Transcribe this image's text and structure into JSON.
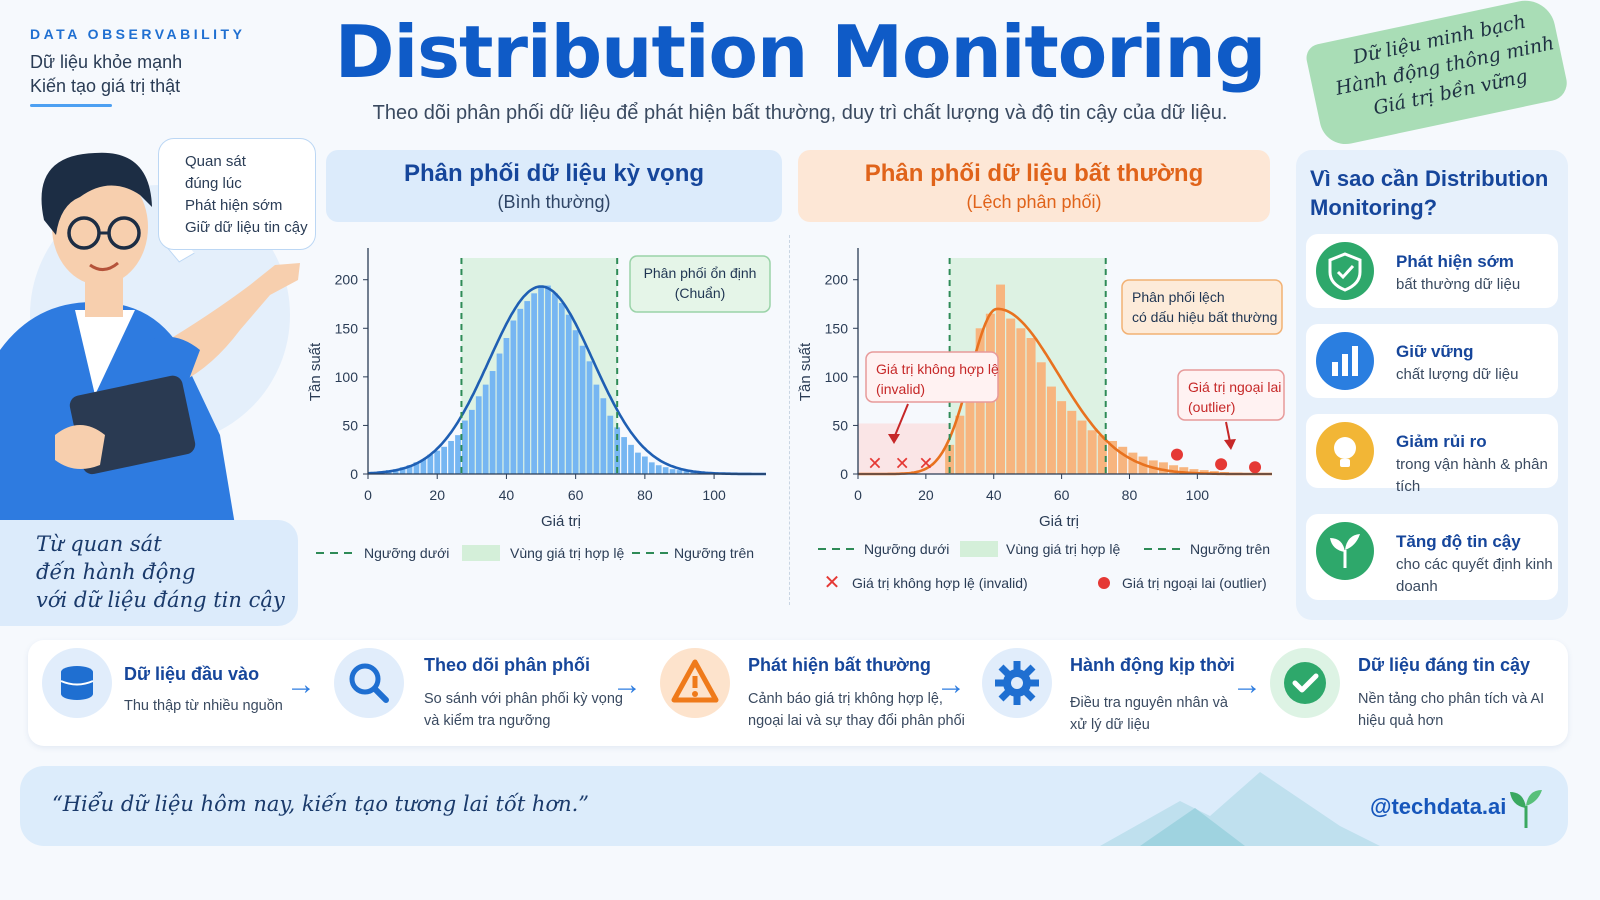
{
  "brand": {
    "tag": "DATA OBSERVABILITY",
    "line1": "Dữ liệu khỏe mạnh",
    "line2": "Kiến tạo giá trị thật"
  },
  "header": {
    "title": "Distribution Monitoring",
    "subtitle": "Theo dõi phân phối dữ liệu để phát hiện bất thường, duy trì chất lượng và độ tin cậy của dữ liệu."
  },
  "tape": {
    "lines": [
      "Dữ liệu minh bạch",
      "Hành động thông minh",
      "Giá trị bền vững"
    ]
  },
  "speech_bubble": {
    "lines": [
      "Quan sát",
      "đúng lúc",
      "Phát hiện sớm",
      "Giữ dữ liệu tin cậy"
    ]
  },
  "quote_card": {
    "lines": [
      "Từ quan sát",
      "đến hành động",
      "với dữ liệu đáng tin cậy"
    ]
  },
  "panels": {
    "left": {
      "title": "Phân phối dữ liệu kỳ vọng",
      "subtitle": "(Bình thường)"
    },
    "right": {
      "title": "Phân phối dữ liệu bất thường",
      "subtitle": "(Lệch phân phối)"
    }
  },
  "colors": {
    "normal_bar": "#76b6f2",
    "normal_curve": "#1f5fb3",
    "skew_bar": "#f7b57f",
    "skew_curve": "#e8721f",
    "threshold": "#2e8b57",
    "valid_zone": "#d4efd9",
    "invalid": "#e53935",
    "outlier": "#e53935",
    "accent": "#0f5bc7"
  },
  "chart_data": [
    {
      "type": "bar",
      "title": "Phân phối dữ liệu kỳ vọng",
      "xlabel": "Giá trị",
      "ylabel": "Tần suất",
      "xlim": [
        0,
        115
      ],
      "ylim": [
        0,
        210
      ],
      "xticks": [
        0,
        20,
        40,
        60,
        80,
        100
      ],
      "yticks": [
        0,
        50,
        100,
        150,
        200
      ],
      "thresholds": {
        "lower": 27,
        "upper": 72
      },
      "bin_width": 2,
      "x": [
        2,
        4,
        6,
        8,
        10,
        12,
        14,
        16,
        18,
        20,
        22,
        24,
        26,
        28,
        30,
        32,
        34,
        36,
        38,
        40,
        42,
        44,
        46,
        48,
        50,
        52,
        54,
        56,
        58,
        60,
        62,
        64,
        66,
        68,
        70,
        72,
        74,
        76,
        78,
        80,
        82,
        84,
        86,
        88,
        90,
        92,
        94,
        96,
        98,
        100,
        102,
        104,
        106,
        108,
        110
      ],
      "values": [
        2,
        3,
        4,
        5,
        7,
        9,
        12,
        15,
        20,
        24,
        28,
        34,
        40,
        55,
        66,
        80,
        92,
        106,
        124,
        140,
        158,
        170,
        178,
        186,
        194,
        194,
        186,
        176,
        164,
        148,
        132,
        116,
        92,
        78,
        60,
        48,
        38,
        30,
        22,
        18,
        12,
        9,
        7,
        5,
        4,
        3,
        2,
        2,
        1,
        1,
        1,
        1,
        1,
        1,
        1
      ],
      "curve": {
        "mean": 50,
        "sd": 15,
        "peak": 193
      },
      "annotations": [
        {
          "text": "Phân phối ổn định\n(Chuẩn)"
        }
      ],
      "legend": [
        "Ngưỡng dưới",
        "Vùng giá trị hợp lệ",
        "Ngưỡng trên"
      ]
    },
    {
      "type": "bar",
      "title": "Phân phối dữ liệu bất thường",
      "xlabel": "Giá trị",
      "ylabel": "Tần suất",
      "xlim": [
        0,
        122
      ],
      "ylim": [
        0,
        210
      ],
      "xticks": [
        0,
        20,
        40,
        60,
        80,
        100
      ],
      "yticks": [
        0,
        50,
        100,
        150,
        200
      ],
      "thresholds": {
        "lower": 27,
        "upper": 73
      },
      "bin_width": 3,
      "x": [
        27,
        30,
        33,
        36,
        39,
        42,
        45,
        48,
        51,
        54,
        57,
        60,
        63,
        66,
        69,
        72,
        75,
        78,
        81,
        84,
        87,
        90,
        93,
        96,
        99,
        102,
        105,
        108,
        111,
        114
      ],
      "values": [
        30,
        60,
        110,
        150,
        165,
        195,
        160,
        150,
        140,
        115,
        90,
        75,
        65,
        55,
        45,
        40,
        34,
        28,
        22,
        18,
        14,
        12,
        9,
        7,
        5,
        4,
        3,
        2,
        1,
        1
      ],
      "curve": {
        "mode": 41,
        "peak": 170
      },
      "invalid_points": [
        {
          "x": 5,
          "y": 12
        },
        {
          "x": 13,
          "y": 12
        },
        {
          "x": 20,
          "y": 12
        }
      ],
      "outlier_points": [
        {
          "x": 94,
          "y": 20
        },
        {
          "x": 107,
          "y": 10
        },
        {
          "x": 117,
          "y": 7
        }
      ],
      "annotations": [
        {
          "text": "Phân phối lệch\ncó dấu hiệu bất thường"
        },
        {
          "text": "Giá trị không hợp lệ\n(invalid)"
        },
        {
          "text": "Giá trị ngoại lai\n(outlier)"
        }
      ],
      "legend": [
        "Ngưỡng dưới",
        "Vùng giá trị hợp lệ",
        "Ngưỡng trên",
        "Giá trị không hợp lệ (invalid)",
        "Giá trị ngoại lai (outlier)"
      ]
    }
  ],
  "why": {
    "title": "Vì sao cần Distribution Monitoring?",
    "items": [
      {
        "title": "Phát hiện sớm",
        "text": "bất thường dữ liệu",
        "icon": "shield-icon",
        "color": "#2ea86b"
      },
      {
        "title": "Giữ vững",
        "text": "chất lượng dữ liệu",
        "icon": "bar-chart-icon",
        "color": "#2a7ee0"
      },
      {
        "title": "Giảm rủi ro",
        "text": "trong vận hành & phân tích",
        "icon": "lightbulb-icon",
        "color": "#f2b636"
      },
      {
        "title": "Tăng độ tin cậy",
        "text": "cho các quyết định kinh doanh",
        "icon": "leaf-icon",
        "color": "#2ea86b"
      }
    ]
  },
  "flow": [
    {
      "title": "Dữ liệu đầu vào",
      "text": "Thu thập từ nhiều nguồn",
      "icon": "database-icon"
    },
    {
      "title": "Theo dõi phân phối",
      "text": "So sánh với phân phối kỳ vọng và kiểm tra ngưỡng",
      "icon": "magnifier-icon"
    },
    {
      "title": "Phát hiện bất thường",
      "text": "Cảnh báo giá trị không hợp lệ, ngoại lai và sự thay đổi phân phối",
      "icon": "warning-icon"
    },
    {
      "title": "Hành động kịp thời",
      "text": "Điều tra nguyên nhân và xử lý dữ liệu",
      "icon": "gear-icon"
    },
    {
      "title": "Dữ liệu đáng tin cậy",
      "text": "Nền tảng cho phân tích và AI hiệu quả hơn",
      "icon": "check-icon"
    }
  ],
  "footer": {
    "quote": "“Hiểu dữ liệu hôm nay, kiến tạo tương lai tốt hơn.”",
    "handle": "@techdata.ai"
  }
}
